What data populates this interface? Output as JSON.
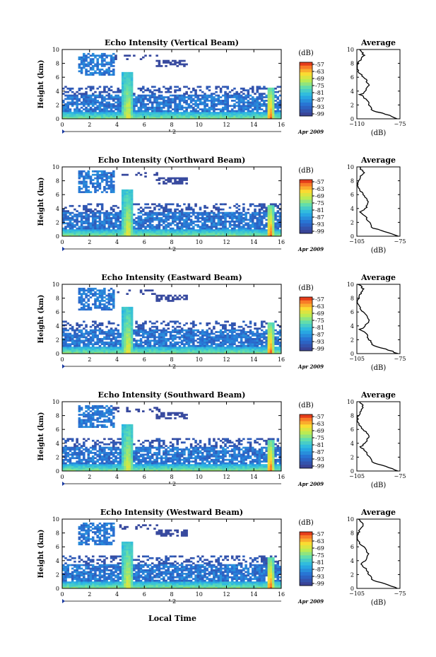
{
  "figure": {
    "xlabel": "Local Time",
    "day_label": "2",
    "date_label": "Apr 2009"
  },
  "chart_data": [
    {
      "type": "heatmap",
      "title": "Echo Intensity (Vertical Beam)",
      "ylabel": "Height (km)",
      "x_ticks": [
        0,
        2,
        4,
        6,
        8,
        10,
        12,
        14,
        16
      ],
      "y_ticks": [
        0,
        2,
        4,
        6,
        8,
        10
      ],
      "xlim": [
        0,
        16
      ],
      "ylim": [
        0,
        10
      ],
      "colorbar": {
        "label": "(dB)",
        "ticks": [
          -57,
          -63,
          -69,
          -75,
          -81,
          -87,
          -93,
          -99
        ]
      },
      "average": {
        "title": "Average",
        "xlabel": "(dB)",
        "xlim": [
          -110,
          -75
        ],
        "x_ticks": [
          -110,
          -75
        ],
        "y_ticks": [
          0,
          2,
          4,
          6,
          8,
          10
        ]
      }
    },
    {
      "type": "heatmap",
      "title": "Echo Intensity (Northward Beam)",
      "ylabel": "Height (km)",
      "x_ticks": [
        0,
        2,
        4,
        6,
        8,
        10,
        12,
        14,
        16
      ],
      "y_ticks": [
        0,
        2,
        4,
        6,
        8,
        10
      ],
      "xlim": [
        0,
        16
      ],
      "ylim": [
        0,
        10
      ],
      "colorbar": {
        "label": "(dB)",
        "ticks": [
          -57,
          -63,
          -69,
          -75,
          -81,
          -87,
          -93,
          -99
        ]
      },
      "average": {
        "title": "Average",
        "xlabel": "(dB)",
        "xlim": [
          -105,
          -75
        ],
        "x_ticks": [
          -105,
          -75
        ],
        "y_ticks": [
          0,
          2,
          4,
          6,
          8,
          10
        ]
      }
    },
    {
      "type": "heatmap",
      "title": "Echo Intensity (Eastward Beam)",
      "ylabel": "Height (km)",
      "x_ticks": [
        0,
        2,
        4,
        6,
        8,
        10,
        12,
        14,
        16
      ],
      "y_ticks": [
        0,
        2,
        4,
        6,
        8,
        10
      ],
      "xlim": [
        0,
        16
      ],
      "ylim": [
        0,
        10
      ],
      "colorbar": {
        "label": "(dB)",
        "ticks": [
          -57,
          -63,
          -69,
          -75,
          -81,
          -87,
          -93,
          -99
        ]
      },
      "average": {
        "title": "Average",
        "xlabel": "(dB)",
        "xlim": [
          -105,
          -75
        ],
        "x_ticks": [
          -105,
          -75
        ],
        "y_ticks": [
          0,
          2,
          4,
          6,
          8,
          10
        ]
      }
    },
    {
      "type": "heatmap",
      "title": "Echo Intensity (Southward Beam)",
      "ylabel": "Height (km)",
      "x_ticks": [
        0,
        2,
        4,
        6,
        8,
        10,
        12,
        14,
        16
      ],
      "y_ticks": [
        0,
        2,
        4,
        6,
        8,
        10
      ],
      "xlim": [
        0,
        16
      ],
      "ylim": [
        0,
        10
      ],
      "colorbar": {
        "label": "(dB)",
        "ticks": [
          -57,
          -63,
          -69,
          -75,
          -81,
          -87,
          -93,
          -99
        ]
      },
      "average": {
        "title": "Average",
        "xlabel": "(dB)",
        "xlim": [
          -105,
          -75
        ],
        "x_ticks": [
          -105,
          -75
        ],
        "y_ticks": [
          0,
          2,
          4,
          6,
          8,
          10
        ]
      }
    },
    {
      "type": "heatmap",
      "title": "Echo Intensity (Westward Beam)",
      "ylabel": "Height (km)",
      "x_ticks": [
        0,
        2,
        4,
        6,
        8,
        10,
        12,
        14,
        16
      ],
      "y_ticks": [
        0,
        2,
        4,
        6,
        8,
        10
      ],
      "xlim": [
        0,
        16
      ],
      "ylim": [
        0,
        10
      ],
      "colorbar": {
        "label": "(dB)",
        "ticks": [
          -57,
          -63,
          -69,
          -75,
          -81,
          -87,
          -93,
          -99
        ]
      },
      "average": {
        "title": "Average",
        "xlabel": "(dB)",
        "xlim": [
          -105,
          -75
        ],
        "x_ticks": [
          -105,
          -75
        ],
        "y_ticks": [
          0,
          2,
          4,
          6,
          8,
          10
        ]
      }
    }
  ]
}
